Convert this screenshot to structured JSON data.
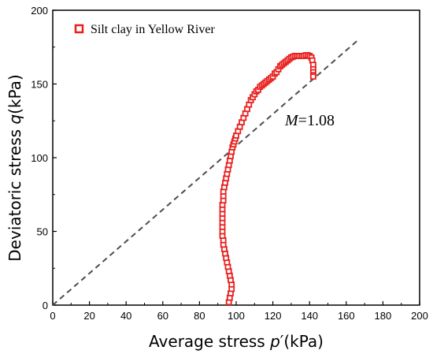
{
  "chart_data": {
    "type": "scatter",
    "xlabel_prefix": "Average stress ",
    "xlabel_var": "p",
    "xlabel_suffix": "′(kPa)",
    "ylabel_prefix": "Deviatoric stress ",
    "ylabel_var": "q",
    "ylabel_suffix": "(kPa)",
    "xlim": [
      0,
      200
    ],
    "ylim": [
      0,
      200
    ],
    "xticks": [
      "0",
      "20",
      "40",
      "60",
      "80",
      "100",
      "120",
      "140",
      "160",
      "180",
      "200"
    ],
    "yticks": [
      "0",
      "50",
      "100",
      "150",
      "200"
    ],
    "grid": false,
    "legend_position": "top-left",
    "series": [
      {
        "name": "Silt clay in Yellow River",
        "marker": "hollow-square",
        "color": "#e8201e",
        "x": [
          96,
          96.5,
          97,
          97.5,
          97.5,
          97,
          96.5,
          96,
          95.5,
          95,
          94.5,
          94,
          93.5,
          93,
          93,
          92.5,
          92.5,
          92.5,
          92.5,
          92.5,
          92.5,
          92.5,
          92.5,
          93,
          93,
          93,
          93.5,
          94,
          94.5,
          95,
          95.5,
          96,
          96.5,
          97,
          97.5,
          98,
          98.5,
          99,
          99.5,
          100,
          101,
          102,
          103,
          104,
          105,
          106,
          107,
          108,
          109,
          110,
          111,
          112,
          113,
          114,
          115,
          116,
          117,
          118,
          119,
          120,
          121,
          122,
          123,
          124,
          125,
          126,
          127,
          128,
          129,
          130,
          131,
          132,
          133,
          134,
          135,
          136,
          137,
          138,
          139,
          140,
          141,
          141.5,
          142,
          142,
          142,
          142,
          142
        ],
        "y": [
          2,
          5,
          8,
          11,
          14,
          17,
          20,
          23,
          26,
          29,
          32,
          35,
          38,
          41,
          44,
          47,
          50,
          53,
          56,
          59,
          62,
          65,
          68,
          71,
          74,
          77,
          80,
          83,
          86,
          89,
          92,
          95,
          98,
          101,
          104,
          107,
          109,
          111,
          113,
          115,
          118,
          121,
          124,
          127,
          130,
          133,
          136,
          139,
          141,
          143,
          145,
          146,
          148,
          149,
          150,
          151,
          152,
          153,
          154,
          155,
          157,
          158,
          160,
          162,
          163,
          164,
          165,
          166,
          167,
          168,
          168.5,
          169,
          169,
          169,
          169,
          169,
          169,
          169.5,
          169.5,
          169,
          168,
          166,
          163,
          160,
          158,
          156,
          155
        ]
      }
    ],
    "reference_line": {
      "style": "dashed",
      "color": "#4d4d4d",
      "slope": 1.08,
      "x": [
        0,
        167
      ]
    },
    "annotation": {
      "var": "M",
      "value": "=1.08",
      "x": 127,
      "y": 127
    }
  }
}
